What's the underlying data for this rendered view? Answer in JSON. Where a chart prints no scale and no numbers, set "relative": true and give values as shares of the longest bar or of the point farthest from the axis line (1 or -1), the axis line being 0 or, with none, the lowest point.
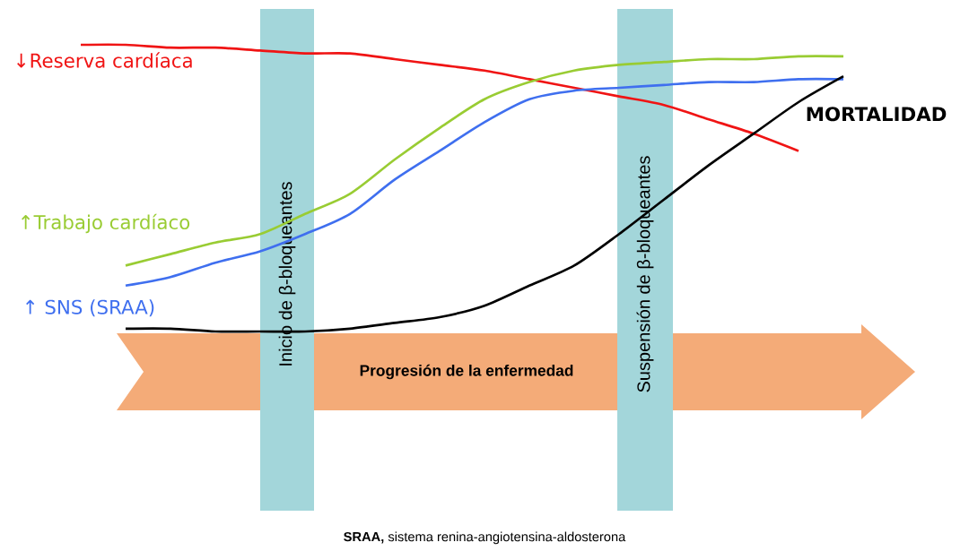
{
  "chart_data": {
    "type": "line",
    "relative": true,
    "marker": "none",
    "categories": [
      null,
      null,
      null,
      null,
      null,
      null,
      null,
      null,
      null,
      null,
      null,
      null,
      null,
      null,
      null,
      null,
      null,
      null
    ],
    "series": [
      {
        "name": "↓Reserva cardíaca",
        "color": "#f01414",
        "values": [
          1.0,
          1.0,
          0.99,
          0.99,
          0.98,
          0.97,
          0.97,
          0.95,
          0.93,
          0.91,
          0.88,
          0.85,
          0.82,
          0.79,
          0.74,
          0.69,
          0.63,
          null
        ]
      },
      {
        "name": "↑Trabajo cardíaco",
        "color": "#99cc33",
        "values": [
          null,
          0.23,
          0.27,
          0.31,
          0.34,
          0.41,
          0.48,
          0.6,
          0.71,
          0.81,
          0.87,
          0.91,
          0.93,
          0.94,
          0.95,
          0.95,
          0.96,
          0.96
        ]
      },
      {
        "name": "↑ SNS (SRAA)",
        "color": "#3f6fef",
        "values": [
          null,
          0.16,
          0.19,
          0.24,
          0.28,
          0.34,
          0.41,
          0.53,
          0.63,
          0.73,
          0.81,
          0.84,
          0.85,
          0.86,
          0.87,
          0.87,
          0.88,
          0.88
        ]
      },
      {
        "name": "MORTALIDAD",
        "color": "#000000",
        "values": [
          null,
          0.01,
          0.01,
          0.0,
          0.0,
          0.0,
          0.01,
          0.03,
          0.05,
          0.09,
          0.16,
          0.23,
          0.34,
          0.46,
          0.58,
          0.69,
          0.8,
          0.89
        ]
      }
    ],
    "annotations": [
      "Progresión de la enfermedad",
      "**SRAA,** sistema renina-angiotensina-aldosterona",
      "Inicio de β-bloqueantes",
      "Suspensión de β-bloqueantes"
    ]
  }
}
